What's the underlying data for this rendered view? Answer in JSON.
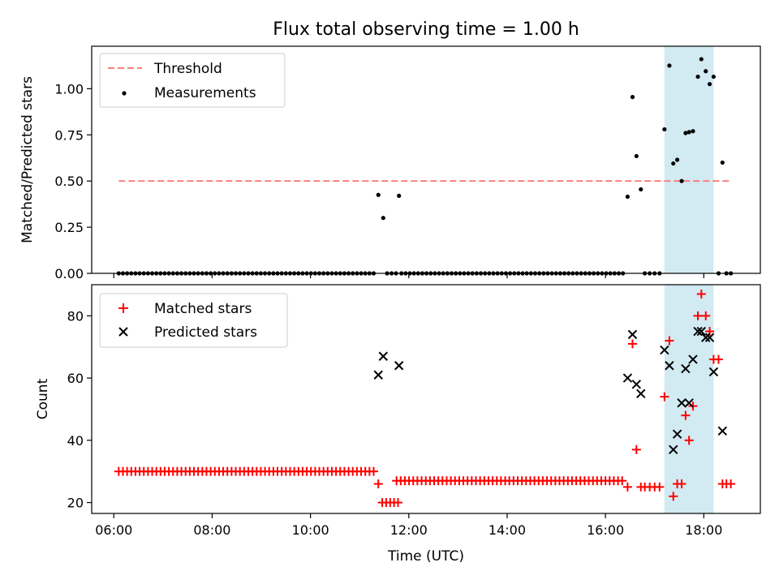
{
  "title": "Flux total observing time = 1.00 h",
  "colors": {
    "threshold": "#ff7f7f",
    "measurements": "#000000",
    "matched": "#ff0000",
    "predicted": "#000000",
    "window": "#add8e6"
  },
  "chart_data": [
    {
      "type": "scatter",
      "ylabel": "Matched/Predicted stars",
      "xlabel": "",
      "xlim": [
        5.55,
        19.15
      ],
      "ylim": [
        0,
        1.23
      ],
      "yticks": [
        0.0,
        0.25,
        0.5,
        0.75,
        1.0
      ],
      "ytick_labels": [
        "0.00",
        "0.25",
        "0.50",
        "0.75",
        "1.00"
      ],
      "xticks": [
        6,
        8,
        10,
        12,
        14,
        16,
        18
      ],
      "grid": false,
      "legend_position": "upper-left",
      "shaded_interval": [
        17.2,
        18.2
      ],
      "threshold": {
        "name": "Threshold",
        "y": 0.5,
        "x_range": [
          6.1,
          18.55
        ]
      },
      "measurements": {
        "name": "Measurements",
        "zero_run_1": [
          6.1,
          11.35
        ],
        "zero_run_2": [
          11.85,
          16.4
        ],
        "points": [
          [
            11.38,
            0.425
          ],
          [
            11.48,
            0.3
          ],
          [
            11.56,
            0.0
          ],
          [
            11.65,
            0.0
          ],
          [
            11.74,
            0.0
          ],
          [
            11.8,
            0.42
          ],
          [
            16.45,
            0.415
          ],
          [
            16.55,
            0.955
          ],
          [
            16.63,
            0.635
          ],
          [
            16.72,
            0.455
          ],
          [
            16.8,
            0.0
          ],
          [
            16.9,
            0.0
          ],
          [
            17.0,
            0.0
          ],
          [
            17.1,
            0.0
          ],
          [
            17.2,
            0.78
          ],
          [
            17.3,
            1.125
          ],
          [
            17.38,
            0.595
          ],
          [
            17.46,
            0.615
          ],
          [
            17.55,
            0.5
          ],
          [
            17.63,
            0.76
          ],
          [
            17.7,
            0.765
          ],
          [
            17.78,
            0.77
          ],
          [
            17.88,
            1.065
          ],
          [
            17.95,
            1.16
          ],
          [
            18.04,
            1.095
          ],
          [
            18.12,
            1.025
          ],
          [
            18.2,
            1.065
          ],
          [
            18.3,
            0.0
          ],
          [
            18.38,
            0.6
          ],
          [
            18.46,
            0.0
          ],
          [
            18.55,
            0.0
          ]
        ]
      }
    },
    {
      "type": "scatter",
      "ylabel": "Count",
      "xlabel": "Time (UTC)",
      "xlim": [
        5.55,
        19.15
      ],
      "ylim": [
        16.5,
        90
      ],
      "yticks": [
        20,
        40,
        60,
        80
      ],
      "ytick_labels": [
        "20",
        "40",
        "60",
        "80"
      ],
      "xticks": [
        6,
        8,
        10,
        12,
        14,
        16,
        18
      ],
      "xtick_labels": [
        "06:00",
        "08:00",
        "10:00",
        "12:00",
        "14:00",
        "16:00",
        "18:00"
      ],
      "grid": false,
      "legend_position": "upper-left",
      "shaded_interval": [
        17.2,
        18.2
      ],
      "matched": {
        "name": "Matched stars",
        "run_1": {
          "x_range": [
            6.1,
            11.3
          ],
          "y": 30
        },
        "run_2": {
          "x_range": [
            11.75,
            16.4
          ],
          "y": 27
        },
        "points": [
          [
            11.38,
            26
          ],
          [
            11.46,
            20
          ],
          [
            11.54,
            20
          ],
          [
            11.62,
            20
          ],
          [
            11.7,
            20
          ],
          [
            11.78,
            20
          ],
          [
            16.45,
            25
          ],
          [
            16.55,
            71
          ],
          [
            16.63,
            37
          ],
          [
            16.72,
            25
          ],
          [
            16.8,
            25
          ],
          [
            16.9,
            25
          ],
          [
            17.0,
            25
          ],
          [
            17.1,
            25
          ],
          [
            17.2,
            54
          ],
          [
            17.3,
            72
          ],
          [
            17.38,
            22
          ],
          [
            17.46,
            26
          ],
          [
            17.55,
            26
          ],
          [
            17.63,
            48
          ],
          [
            17.7,
            40
          ],
          [
            17.78,
            51
          ],
          [
            17.88,
            80
          ],
          [
            17.95,
            87
          ],
          [
            18.04,
            80
          ],
          [
            18.12,
            75
          ],
          [
            18.2,
            66
          ],
          [
            18.3,
            66
          ],
          [
            18.38,
            26
          ],
          [
            18.46,
            26
          ],
          [
            18.55,
            26
          ]
        ]
      },
      "predicted": {
        "name": "Predicted stars",
        "points": [
          [
            11.38,
            61
          ],
          [
            11.48,
            67
          ],
          [
            11.8,
            64
          ],
          [
            16.45,
            60
          ],
          [
            16.55,
            74
          ],
          [
            16.63,
            58
          ],
          [
            16.72,
            55
          ],
          [
            17.2,
            69
          ],
          [
            17.3,
            64
          ],
          [
            17.38,
            37
          ],
          [
            17.46,
            42
          ],
          [
            17.55,
            52
          ],
          [
            17.63,
            63
          ],
          [
            17.7,
            52
          ],
          [
            17.78,
            66
          ],
          [
            17.88,
            75
          ],
          [
            17.95,
            75
          ],
          [
            18.04,
            73
          ],
          [
            18.12,
            73
          ],
          [
            18.2,
            62
          ],
          [
            18.38,
            43
          ]
        ]
      }
    }
  ]
}
